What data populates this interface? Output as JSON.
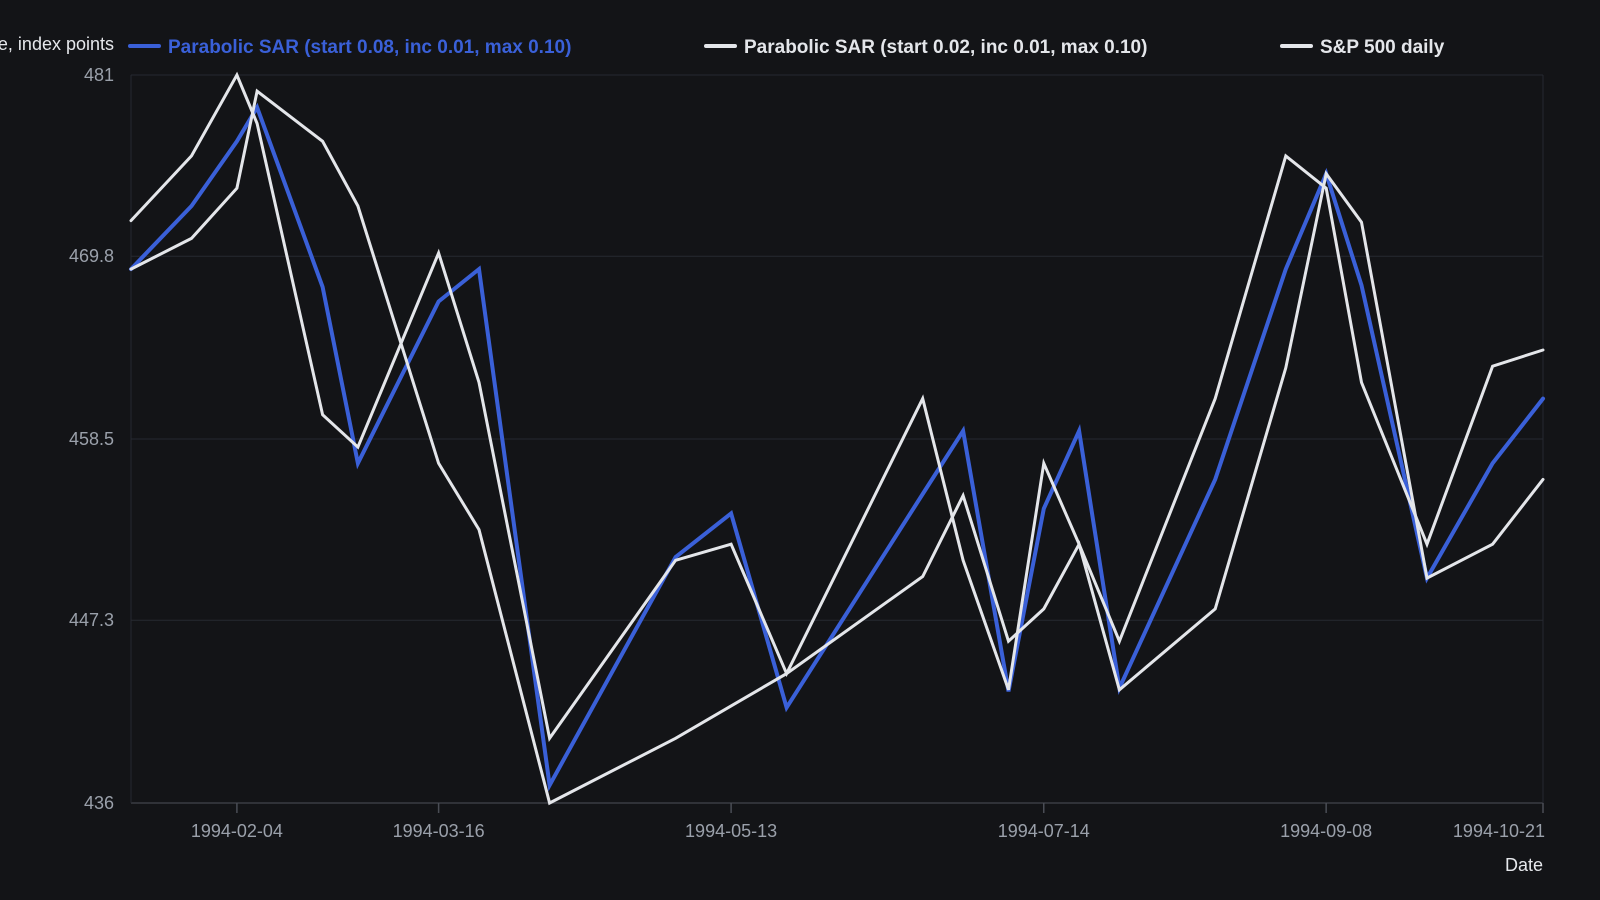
{
  "chart_data": {
    "type": "line",
    "title": "",
    "xlabel": "Date",
    "ylabel": "Price, index points",
    "ylim": [
      436,
      481
    ],
    "yticks": [
      "481",
      "469.8",
      "458.5",
      "447.3",
      "436"
    ],
    "xticks": [
      "1994-02-04",
      "1994-03-16",
      "1994-05-13",
      "1994-07-14",
      "1994-09-08",
      "1994-10-21"
    ],
    "x": [
      "1994-01-14",
      "1994-02-04",
      "1994-02-21",
      "1994-02-28",
      "1994-03-08",
      "1994-03-16",
      "1994-03-31",
      "1994-04-18",
      "1994-05-02",
      "1994-05-13",
      "1994-05-24",
      "1994-06-20",
      "1994-07-01",
      "1994-07-14",
      "1994-07-29",
      "1994-08-17",
      "1994-09-08",
      "1994-09-28",
      "1994-10-21"
    ],
    "grid": true,
    "legend_position": "top",
    "series": [
      {
        "name": "Parabolic SAR (start 0.08, inc 0.01, max 0.10)",
        "color": "#3a60d8",
        "width": 4,
        "points": [
          [
            "1994-01-14",
            469.0
          ],
          [
            "1994-01-26",
            472.9
          ],
          [
            "1994-02-04",
            476.9
          ],
          [
            "1994-02-08",
            479.0
          ],
          [
            "1994-02-21",
            467.9
          ],
          [
            "1994-02-28",
            457.0
          ],
          [
            "1994-03-16",
            467.0
          ],
          [
            "1994-03-24",
            469.0
          ],
          [
            "1994-04-07",
            437.1
          ],
          [
            "1994-05-02",
            451.2
          ],
          [
            "1994-05-13",
            453.9
          ],
          [
            "1994-05-24",
            441.9
          ],
          [
            "1994-06-20",
            455.1
          ],
          [
            "1994-06-28",
            459.0
          ],
          [
            "1994-07-07",
            442.9
          ],
          [
            "1994-07-14",
            454.2
          ],
          [
            "1994-07-21",
            459.0
          ],
          [
            "1994-07-29",
            443.1
          ],
          [
            "1994-08-17",
            456.0
          ],
          [
            "1994-08-31",
            469.0
          ],
          [
            "1994-09-08",
            474.9
          ],
          [
            "1994-09-15",
            468.0
          ],
          [
            "1994-09-28",
            449.9
          ],
          [
            "1994-10-11",
            457.0
          ],
          [
            "1994-10-21",
            461.0
          ]
        ]
      },
      {
        "name": "Parabolic SAR (start 0.02, inc 0.01, max 0.10)",
        "color": "#e4e6ea",
        "width": 3,
        "points": [
          [
            "1994-01-14",
            469.0
          ],
          [
            "1994-01-26",
            470.9
          ],
          [
            "1994-02-04",
            474.0
          ],
          [
            "1994-02-08",
            480.0
          ],
          [
            "1994-02-21",
            476.9
          ],
          [
            "1994-02-28",
            472.9
          ],
          [
            "1994-03-16",
            457.0
          ],
          [
            "1994-03-24",
            452.9
          ],
          [
            "1994-04-07",
            436.0
          ],
          [
            "1994-05-02",
            440.0
          ],
          [
            "1994-05-13",
            442.0
          ],
          [
            "1994-05-24",
            444.0
          ],
          [
            "1994-06-20",
            450.0
          ],
          [
            "1994-06-28",
            455.0
          ],
          [
            "1994-07-07",
            446.0
          ],
          [
            "1994-07-14",
            448.0
          ],
          [
            "1994-07-21",
            452.0
          ],
          [
            "1994-07-29",
            443.0
          ],
          [
            "1994-08-17",
            448.0
          ],
          [
            "1994-08-31",
            462.9
          ],
          [
            "1994-09-08",
            474.9
          ],
          [
            "1994-09-15",
            471.9
          ],
          [
            "1994-09-28",
            449.9
          ],
          [
            "1994-10-11",
            452.0
          ],
          [
            "1994-10-21",
            456.0
          ]
        ]
      },
      {
        "name": "S&P 500 daily",
        "color": "#e4e6ea",
        "width": 3,
        "points": [
          [
            "1994-01-14",
            472.0
          ],
          [
            "1994-01-26",
            476.0
          ],
          [
            "1994-02-04",
            481.0
          ],
          [
            "1994-02-08",
            478.0
          ],
          [
            "1994-02-21",
            460.0
          ],
          [
            "1994-02-28",
            458.0
          ],
          [
            "1994-03-16",
            470.0
          ],
          [
            "1994-03-24",
            462.0
          ],
          [
            "1994-04-07",
            440.0
          ],
          [
            "1994-05-02",
            451.0
          ],
          [
            "1994-05-13",
            452.0
          ],
          [
            "1994-05-24",
            444.0
          ],
          [
            "1994-06-20",
            461.0
          ],
          [
            "1994-06-28",
            451.0
          ],
          [
            "1994-07-07",
            443.0
          ],
          [
            "1994-07-14",
            457.0
          ],
          [
            "1994-07-21",
            452.0
          ],
          [
            "1994-07-29",
            446.0
          ],
          [
            "1994-08-17",
            461.0
          ],
          [
            "1994-08-31",
            476.0
          ],
          [
            "1994-09-08",
            474.0
          ],
          [
            "1994-09-15",
            462.0
          ],
          [
            "1994-09-28",
            452.0
          ],
          [
            "1994-10-11",
            463.0
          ],
          [
            "1994-10-21",
            464.0
          ]
        ]
      }
    ]
  }
}
